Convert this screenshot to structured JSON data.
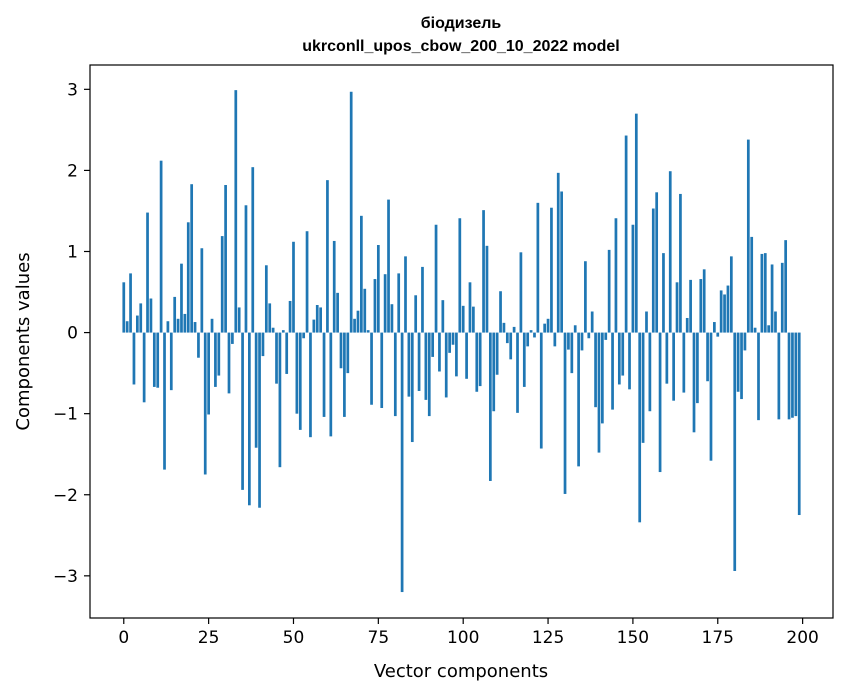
{
  "chart_data": {
    "type": "bar",
    "title": "біодизель",
    "subtitle": "ukrconll_upos_cbow_200_10_2022 model",
    "xlabel": "Vector components",
    "ylabel": "Components values",
    "xlim": [
      -9.95,
      208.95
    ],
    "ylim": [
      -3.52,
      3.3
    ],
    "xticks": [
      0,
      25,
      50,
      75,
      100,
      125,
      150,
      175,
      200
    ],
    "yticks": [
      -3,
      -2,
      -1,
      0,
      1,
      2,
      3
    ],
    "ytick_labels": [
      "−3",
      "−2",
      "−1",
      "0",
      "1",
      "2",
      "3"
    ],
    "color": "#1f77b4",
    "grid": false,
    "x": [
      0,
      1,
      2,
      3,
      4,
      5,
      6,
      7,
      8,
      9,
      10,
      11,
      12,
      13,
      14,
      15,
      16,
      17,
      18,
      19,
      20,
      21,
      22,
      23,
      24,
      25,
      26,
      27,
      28,
      29,
      30,
      31,
      32,
      33,
      34,
      35,
      36,
      37,
      38,
      39,
      40,
      41,
      42,
      43,
      44,
      45,
      46,
      47,
      48,
      49,
      50,
      51,
      52,
      53,
      54,
      55,
      56,
      57,
      58,
      59,
      60,
      61,
      62,
      63,
      64,
      65,
      66,
      67,
      68,
      69,
      70,
      71,
      72,
      73,
      74,
      75,
      76,
      77,
      78,
      79,
      80,
      81,
      82,
      83,
      84,
      85,
      86,
      87,
      88,
      89,
      90,
      91,
      92,
      93,
      94,
      95,
      96,
      97,
      98,
      99,
      100,
      101,
      102,
      103,
      104,
      105,
      106,
      107,
      108,
      109,
      110,
      111,
      112,
      113,
      114,
      115,
      116,
      117,
      118,
      119,
      120,
      121,
      122,
      123,
      124,
      125,
      126,
      127,
      128,
      129,
      130,
      131,
      132,
      133,
      134,
      135,
      136,
      137,
      138,
      139,
      140,
      141,
      142,
      143,
      144,
      145,
      146,
      147,
      148,
      149,
      150,
      151,
      152,
      153,
      154,
      155,
      156,
      157,
      158,
      159,
      160,
      161,
      162,
      163,
      164,
      165,
      166,
      167,
      168,
      169,
      170,
      171,
      172,
      173,
      174,
      175,
      176,
      177,
      178,
      179,
      180,
      181,
      182,
      183,
      184,
      185,
      186,
      187,
      188,
      189,
      190,
      191,
      192,
      193,
      194,
      195,
      196,
      197,
      198,
      199
    ],
    "values": [
      0.62,
      0.14,
      0.73,
      -0.64,
      0.21,
      0.36,
      -0.86,
      1.48,
      0.42,
      -0.67,
      -0.68,
      2.12,
      -1.69,
      0.14,
      -0.71,
      0.44,
      0.17,
      0.85,
      0.23,
      1.36,
      1.83,
      0.13,
      -0.31,
      1.04,
      -1.75,
      -1.01,
      0.17,
      -0.67,
      -0.53,
      1.19,
      1.82,
      -0.75,
      -0.14,
      2.99,
      0.31,
      -1.94,
      1.57,
      -2.13,
      2.04,
      -1.42,
      -2.16,
      -0.29,
      0.83,
      0.36,
      0.06,
      -0.63,
      -1.66,
      0.03,
      -0.51,
      0.39,
      1.12,
      -1.0,
      -1.2,
      -0.07,
      1.25,
      -1.29,
      0.16,
      0.34,
      0.31,
      -1.04,
      1.88,
      -1.28,
      1.13,
      0.49,
      -0.44,
      -1.04,
      -0.5,
      2.97,
      0.17,
      0.27,
      1.44,
      0.54,
      0.03,
      -0.89,
      0.66,
      1.08,
      -0.93,
      0.72,
      1.64,
      0.35,
      -1.03,
      0.73,
      -3.2,
      0.94,
      -0.79,
      -1.35,
      0.46,
      -0.72,
      0.81,
      -0.83,
      -1.03,
      -0.3,
      1.33,
      -0.48,
      0.4,
      -0.8,
      -0.25,
      -0.15,
      -0.54,
      1.41,
      0.33,
      -0.57,
      0.62,
      0.32,
      -0.73,
      -0.66,
      1.51,
      1.07,
      -1.83,
      -0.97,
      -0.52,
      0.51,
      0.12,
      -0.13,
      -0.33,
      0.07,
      -0.99,
      0.99,
      -0.67,
      -0.17,
      0.03,
      -0.06,
      1.6,
      -1.43,
      0.11,
      0.17,
      1.54,
      -0.17,
      1.97,
      1.74,
      -1.99,
      -0.21,
      -0.5,
      0.09,
      -1.65,
      -0.22,
      0.88,
      -0.07,
      0.26,
      -0.92,
      -1.48,
      -1.12,
      -0.09,
      1.02,
      -0.95,
      1.41,
      -0.64,
      -0.53,
      2.43,
      -0.7,
      1.33,
      2.7,
      -2.34,
      -1.36,
      0.26,
      -0.97,
      1.53,
      1.73,
      -1.72,
      0.98,
      -0.63,
      1.99,
      -0.84,
      0.62,
      1.71,
      -0.74,
      0.18,
      0.65,
      -1.23,
      -0.87,
      0.66,
      0.78,
      -0.6,
      -1.58,
      0.13,
      -0.05,
      0.52,
      0.47,
      0.58,
      0.94,
      -2.94,
      -0.73,
      -0.82,
      -0.22,
      2.38,
      1.18,
      0.06,
      -1.08,
      0.97,
      0.98,
      0.09,
      0.84,
      0.26,
      -1.07,
      0.86,
      1.14,
      -1.07,
      -1.05,
      -1.03,
      -2.25
    ]
  }
}
